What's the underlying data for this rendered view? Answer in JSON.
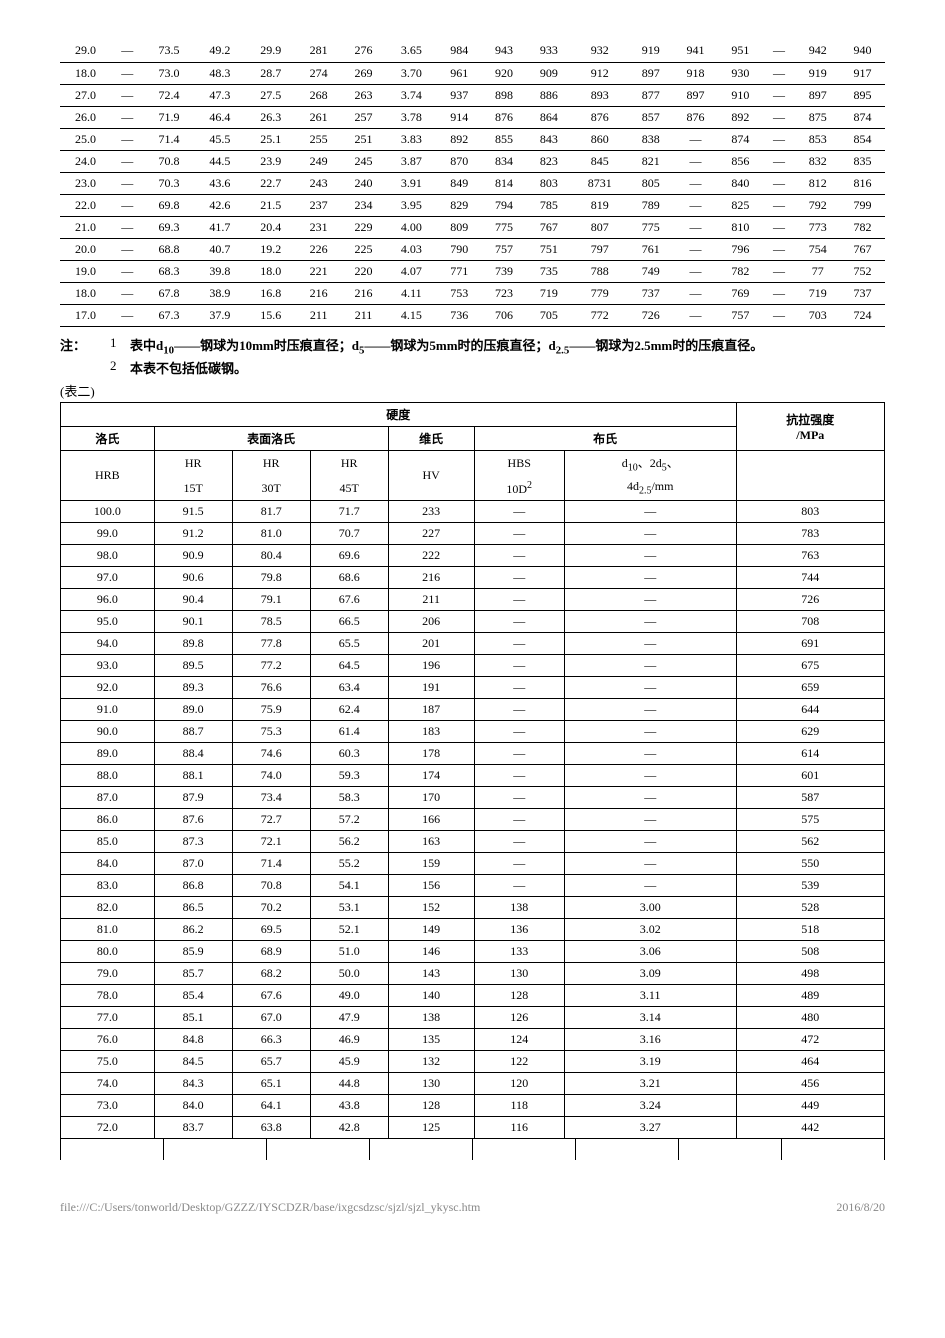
{
  "table1": {
    "rows": [
      [
        "29.0",
        "—",
        "73.5",
        "49.2",
        "29.9",
        "281",
        "276",
        "3.65",
        "984",
        "943",
        "933",
        "932",
        "919",
        "941",
        "951",
        "—",
        "942",
        "940"
      ],
      [
        "18.0",
        "—",
        "73.0",
        "48.3",
        "28.7",
        "274",
        "269",
        "3.70",
        "961",
        "920",
        "909",
        "912",
        "897",
        "918",
        "930",
        "—",
        "919",
        "917"
      ],
      [
        "27.0",
        "—",
        "72.4",
        "47.3",
        "27.5",
        "268",
        "263",
        "3.74",
        "937",
        "898",
        "886",
        "893",
        "877",
        "897",
        "910",
        "—",
        "897",
        "895"
      ],
      [
        "26.0",
        "—",
        "71.9",
        "46.4",
        "26.3",
        "261",
        "257",
        "3.78",
        "914",
        "876",
        "864",
        "876",
        "857",
        "876",
        "892",
        "—",
        "875",
        "874"
      ],
      [
        "25.0",
        "—",
        "71.4",
        "45.5",
        "25.1",
        "255",
        "251",
        "3.83",
        "892",
        "855",
        "843",
        "860",
        "838",
        "—",
        "874",
        "—",
        "853",
        "854"
      ],
      [
        "24.0",
        "—",
        "70.8",
        "44.5",
        "23.9",
        "249",
        "245",
        "3.87",
        "870",
        "834",
        "823",
        "845",
        "821",
        "—",
        "856",
        "—",
        "832",
        "835"
      ],
      [
        "23.0",
        "—",
        "70.3",
        "43.6",
        "22.7",
        "243",
        "240",
        "3.91",
        "849",
        "814",
        "803",
        "8731",
        "805",
        "—",
        "840",
        "—",
        "812",
        "816"
      ],
      [
        "22.0",
        "—",
        "69.8",
        "42.6",
        "21.5",
        "237",
        "234",
        "3.95",
        "829",
        "794",
        "785",
        "819",
        "789",
        "—",
        "825",
        "—",
        "792",
        "799"
      ],
      [
        "21.0",
        "—",
        "69.3",
        "41.7",
        "20.4",
        "231",
        "229",
        "4.00",
        "809",
        "775",
        "767",
        "807",
        "775",
        "—",
        "810",
        "—",
        "773",
        "782"
      ],
      [
        "20.0",
        "—",
        "68.8",
        "40.7",
        "19.2",
        "226",
        "225",
        "4.03",
        "790",
        "757",
        "751",
        "797",
        "761",
        "—",
        "796",
        "—",
        "754",
        "767"
      ],
      [
        "19.0",
        "—",
        "68.3",
        "39.8",
        "18.0",
        "221",
        "220",
        "4.07",
        "771",
        "739",
        "735",
        "788",
        "749",
        "—",
        "782",
        "—",
        "77",
        "752"
      ],
      [
        "18.0",
        "—",
        "67.8",
        "38.9",
        "16.8",
        "216",
        "216",
        "4.11",
        "753",
        "723",
        "719",
        "779",
        "737",
        "—",
        "769",
        "—",
        "719",
        "737"
      ],
      [
        "17.0",
        "—",
        "67.3",
        "37.9",
        "15.6",
        "211",
        "211",
        "4.15",
        "736",
        "706",
        "705",
        "772",
        "726",
        "—",
        "757",
        "—",
        "703",
        "724"
      ]
    ]
  },
  "notes": {
    "label": "注：",
    "items": [
      {
        "num": "1",
        "text_html": "表中d<sub>10</sub>——钢球为10mm时压痕直径；d<sub>5</sub>——钢球为5mm时的压痕直径；d<sub>2.5</sub>——钢球为2.5mm时的压痕直径。"
      },
      {
        "num": "2",
        "text_html": "本表不包括低碳钢。"
      }
    ]
  },
  "table2_label": "(表二)",
  "table2": {
    "header": {
      "top_hardness": "硬度",
      "top_strength": "抗拉强度",
      "strength_unit": "/MPa",
      "luoshi": "洛氏",
      "biaomian": "表面洛氏",
      "weishi": "维氏",
      "bushi": "布氏",
      "hrb": "HRB",
      "hr15t_1": "HR",
      "hr15t_2": "15T",
      "hr30t_1": "HR",
      "hr30t_2": "30T",
      "hr45t_1": "HR",
      "hr45t_2": "45T",
      "hv": "HV",
      "hbs_1": "HBS",
      "hbs_2_html": "10D<sup>2</sup>",
      "d_1_html": "d<sub>10</sub>、2d<sub>5</sub>、",
      "d_2_html": "4d<sub>2.5</sub>/mm"
    },
    "rows": [
      [
        "100.0",
        "91.5",
        "81.7",
        "71.7",
        "233",
        "—",
        "—",
        "803"
      ],
      [
        "99.0",
        "91.2",
        "81.0",
        "70.7",
        "227",
        "—",
        "—",
        "783"
      ],
      [
        "98.0",
        "90.9",
        "80.4",
        "69.6",
        "222",
        "—",
        "—",
        "763"
      ],
      [
        "97.0",
        "90.6",
        "79.8",
        "68.6",
        "216",
        "—",
        "—",
        "744"
      ],
      [
        "96.0",
        "90.4",
        "79.1",
        "67.6",
        "211",
        "—",
        "—",
        "726"
      ],
      [
        "95.0",
        "90.1",
        "78.5",
        "66.5",
        "206",
        "—",
        "—",
        "708"
      ],
      [
        "94.0",
        "89.8",
        "77.8",
        "65.5",
        "201",
        "—",
        "—",
        "691"
      ],
      [
        "93.0",
        "89.5",
        "77.2",
        "64.5",
        "196",
        "—",
        "—",
        "675"
      ],
      [
        "92.0",
        "89.3",
        "76.6",
        "63.4",
        "191",
        "—",
        "—",
        "659"
      ],
      [
        "91.0",
        "89.0",
        "75.9",
        "62.4",
        "187",
        "—",
        "—",
        "644"
      ],
      [
        "90.0",
        "88.7",
        "75.3",
        "61.4",
        "183",
        "—",
        "—",
        "629"
      ],
      [
        "89.0",
        "88.4",
        "74.6",
        "60.3",
        "178",
        "—",
        "—",
        "614"
      ],
      [
        "88.0",
        "88.1",
        "74.0",
        "59.3",
        "174",
        "—",
        "—",
        "601"
      ],
      [
        "87.0",
        "87.9",
        "73.4",
        "58.3",
        "170",
        "—",
        "—",
        "587"
      ],
      [
        "86.0",
        "87.6",
        "72.7",
        "57.2",
        "166",
        "—",
        "—",
        "575"
      ],
      [
        "85.0",
        "87.3",
        "72.1",
        "56.2",
        "163",
        "—",
        "—",
        "562"
      ],
      [
        "84.0",
        "87.0",
        "71.4",
        "55.2",
        "159",
        "—",
        "—",
        "550"
      ],
      [
        "83.0",
        "86.8",
        "70.8",
        "54.1",
        "156",
        "—",
        "—",
        "539"
      ],
      [
        "82.0",
        "86.5",
        "70.2",
        "53.1",
        "152",
        "138",
        "3.00",
        "528"
      ],
      [
        "81.0",
        "86.2",
        "69.5",
        "52.1",
        "149",
        "136",
        "3.02",
        "518"
      ],
      [
        "80.0",
        "85.9",
        "68.9",
        "51.0",
        "146",
        "133",
        "3.06",
        "508"
      ],
      [
        "79.0",
        "85.7",
        "68.2",
        "50.0",
        "143",
        "130",
        "3.09",
        "498"
      ],
      [
        "78.0",
        "85.4",
        "67.6",
        "49.0",
        "140",
        "128",
        "3.11",
        "489"
      ],
      [
        "77.0",
        "85.1",
        "67.0",
        "47.9",
        "138",
        "126",
        "3.14",
        "480"
      ],
      [
        "76.0",
        "84.8",
        "66.3",
        "46.9",
        "135",
        "124",
        "3.16",
        "472"
      ],
      [
        "75.0",
        "84.5",
        "65.7",
        "45.9",
        "132",
        "122",
        "3.19",
        "464"
      ],
      [
        "74.0",
        "84.3",
        "65.1",
        "44.8",
        "130",
        "120",
        "3.21",
        "456"
      ],
      [
        "73.0",
        "84.0",
        "64.1",
        "43.8",
        "128",
        "118",
        "3.24",
        "449"
      ],
      [
        "72.0",
        "83.7",
        "63.8",
        "42.8",
        "125",
        "116",
        "3.27",
        "442"
      ]
    ]
  },
  "footer": {
    "path": "file:///C:/Users/tonworld/Desktop/GZZZ/IYSCDZR/base/ixgcsdzsc/sjzl/sjzl_ykysc.htm",
    "date": "2016/8/20"
  },
  "colors": {
    "text": "#000000",
    "bg": "#ffffff",
    "border": "#000000",
    "footer": "#888888"
  }
}
